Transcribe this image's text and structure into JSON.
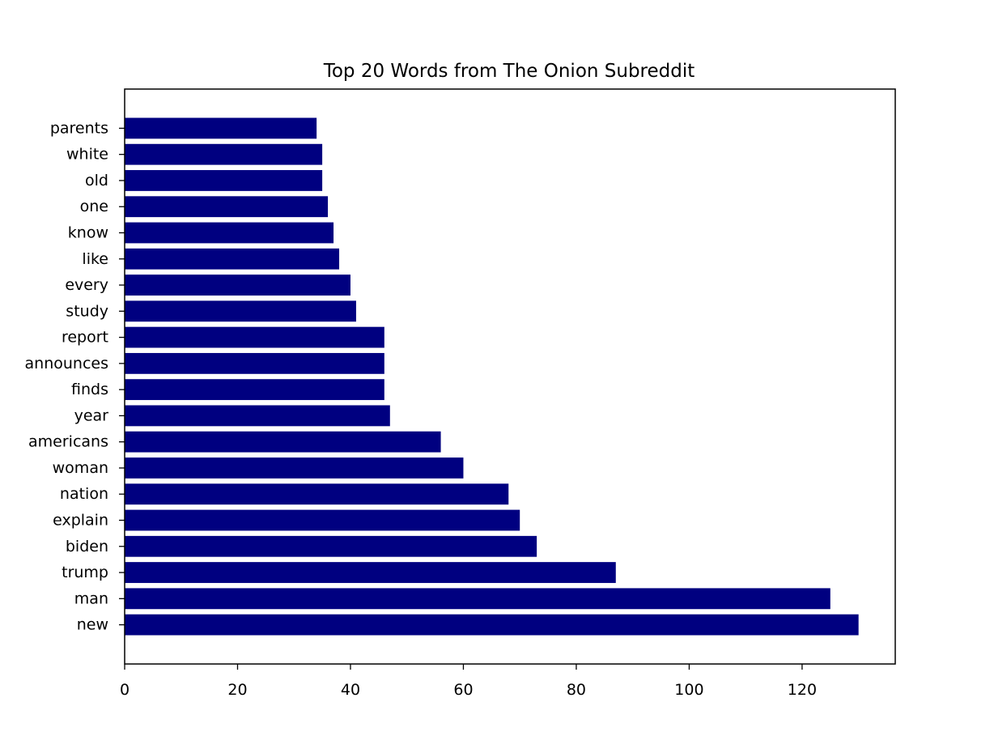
{
  "chart_data": {
    "type": "bar",
    "orientation": "horizontal",
    "title": "Top 20 Words from The Onion Subreddit",
    "xlabel": "",
    "ylabel": "",
    "categories": [
      "new",
      "man",
      "trump",
      "biden",
      "explain",
      "nation",
      "woman",
      "americans",
      "year",
      "finds",
      "announces",
      "report",
      "study",
      "every",
      "like",
      "know",
      "one",
      "old",
      "white",
      "parents"
    ],
    "values": [
      130,
      125,
      87,
      73,
      70,
      68,
      60,
      56,
      47,
      46,
      46,
      46,
      41,
      40,
      38,
      37,
      36,
      35,
      35,
      34
    ],
    "xlim": [
      0,
      136.5
    ],
    "xticks": [
      0,
      20,
      40,
      60,
      80,
      100,
      120
    ],
    "bar_color": "#000080",
    "grid": false,
    "legend": "none"
  }
}
